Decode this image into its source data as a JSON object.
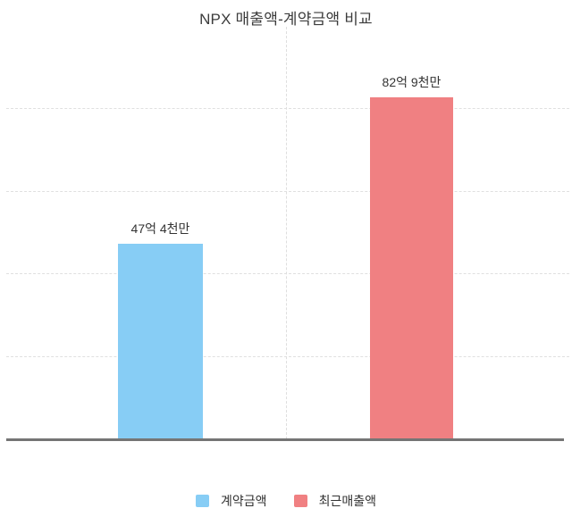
{
  "chart_data": {
    "type": "bar",
    "title": "NPX 매출액-계약금액 비교",
    "categories": [
      "계약금액",
      "최근매출액"
    ],
    "values": [
      47.4,
      82.9
    ],
    "value_labels": [
      "47억 4천만",
      "82억 9천만"
    ],
    "colors": [
      "#87CDF5",
      "#F08082"
    ],
    "xlabel": "",
    "ylabel": "",
    "ylim": [
      0,
      100
    ],
    "gridline_values": [
      20,
      40,
      60,
      80
    ],
    "grid": "horizontal-dashed",
    "axis_color": "#757575",
    "legend": {
      "position": "bottom",
      "entries": [
        {
          "label": "계약금액",
          "color": "#87CDF5"
        },
        {
          "label": "최근매출액",
          "color": "#F08082"
        }
      ]
    }
  }
}
